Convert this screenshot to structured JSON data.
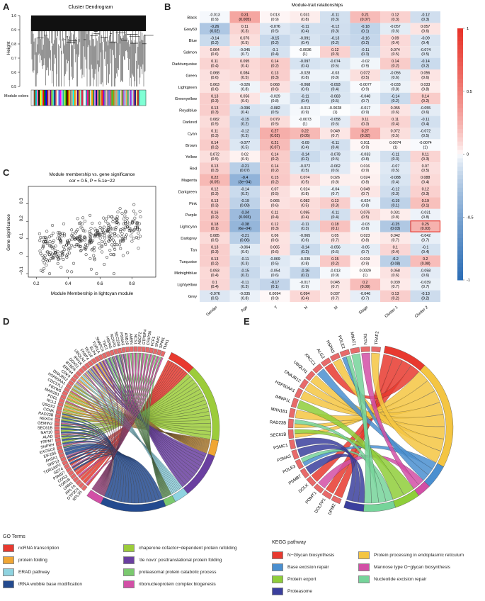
{
  "panels": {
    "A": "A",
    "B": "B",
    "C": "C",
    "D": "D",
    "E": "E"
  },
  "panelA": {
    "title": "Cluster Dendrogram",
    "ylabel": "Height",
    "yticks": [
      "1.0",
      "0.9",
      "0.8",
      "0.7",
      "0.6",
      "0.5"
    ],
    "module_label": "Module colors",
    "module_colors": [
      "#ffffff",
      "#c0c0c0",
      "#8b4513",
      "#00ced1",
      "#ff69b4",
      "#000000",
      "#ffff00",
      "#90ee90",
      "#ff0000",
      "#008000",
      "#0000ff",
      "#a52a2a",
      "#ffc0cb",
      "#800080",
      "#9acd32",
      "#40e0d0",
      "#191970",
      "#fa8072",
      "#e0ffff",
      "#4169e1",
      "#ff00ff",
      "#add8e6",
      "#20b2aa",
      "#adff2f",
      "#006400",
      "#8b0000",
      "#ffd700",
      "#808080",
      "#d2b48c",
      "#00ffff",
      "#ff8c00",
      "#f5deb3",
      "#4b0082",
      "#daa520",
      "#7fffd4",
      "#dc143c",
      "#c0c0c0",
      "#ffffff",
      "#4682b4",
      "#ff1493",
      "#556b2f",
      "#b0e0e6",
      "#ffa500",
      "#2e8b57",
      "#ee82ee",
      "#00008b",
      "#f08080",
      "#228b22",
      "#bdb76b",
      "#ff4500",
      "#9400d3",
      "#5f9ea0",
      "#ffb6c1",
      "#708090",
      "#7b68ee",
      "#cd5c5c",
      "#32cd32",
      "#b8860b",
      "#8fbc8f",
      "#e9967a",
      "#66cdaa",
      "#1e90ff",
      "#ffe4b5",
      "#6b8e23",
      "#ba55d3",
      "#87ceeb",
      "#f4a460",
      "#3cb371",
      "#d8bfd8",
      "#8a2be2",
      "#afeeee",
      "#db7093",
      "#000080",
      "#f0e68c",
      "#b22222",
      "#48d1cc",
      "#7fffd4",
      "#7fffd4",
      "#7fffd4",
      "#7fffd4"
    ]
  },
  "panelB": {
    "title": "Module-trait relationships",
    "modules": [
      "Black",
      "Grey60",
      "Blue",
      "Salmon",
      "Darkturquoise",
      "Green",
      "Lightgreen",
      "Greenyellow",
      "Royalblue",
      "Darkred",
      "Cyan",
      "Brown",
      "Yellow",
      "Red",
      "Magenta",
      "Darkgreen",
      "Pink",
      "Purple",
      "Lightcyan",
      "Darkgrey",
      "Tan",
      "Turquoise",
      "Midnightblue",
      "Lightyellow",
      "Grey"
    ],
    "traits": [
      "Gender",
      "Age",
      "T",
      "N",
      "M",
      "Stage",
      "Cluster 1",
      "Cluster 2"
    ],
    "cor": [
      [
        -0.013,
        0.31,
        0.013,
        0.031,
        -0.11,
        0.21,
        0.12,
        -0.12
      ],
      [
        -0.26,
        0.11,
        -0.076,
        -0.11,
        -0.12,
        -0.18,
        -0.057,
        0.057
      ],
      [
        -0.14,
        0.076,
        -0.15,
        -0.091,
        -0.13,
        -0.16,
        0.09,
        -0.09
      ],
      [
        0.064,
        -0.045,
        -0.1,
        -0.0036,
        0.12,
        -0.11,
        0.074,
        -0.074
      ],
      [
        0.11,
        0.095,
        0.14,
        -0.097,
        -0.074,
        -0.02,
        0.14,
        -0.14
      ],
      [
        0.068,
        0.084,
        0.13,
        -0.028,
        -0.03,
        0.072,
        -0.056,
        0.056
      ],
      [
        0.063,
        -0.026,
        0.068,
        -0.068,
        -0.093,
        -0.0077,
        -0.033,
        0.033
      ],
      [
        0.13,
        0.056,
        -0.029,
        -0.11,
        -0.083,
        -0.048,
        -0.14,
        0.14
      ],
      [
        0.13,
        -0.096,
        -0.082,
        -0.013,
        -0.0028,
        -0.017,
        0.055,
        -0.055
      ],
      [
        0.082,
        -0.15,
        0.079,
        -0.0073,
        -0.058,
        0.11,
        0.11,
        -0.11
      ],
      [
        0.11,
        -0.12,
        0.27,
        0.22,
        0.049,
        0.27,
        0.072,
        -0.072
      ],
      [
        0.14,
        -0.077,
        0.21,
        -0.09,
        -0.11,
        0.011,
        0.0074,
        -0.0074
      ],
      [
        0.072,
        0.02,
        0.14,
        -0.14,
        -0.078,
        -0.033,
        -0.11,
        0.11
      ],
      [
        0.13,
        -0.21,
        0.14,
        -0.072,
        -0.062,
        0.016,
        -0.07,
        0.07
      ],
      [
        0.22,
        -0.4,
        0.15,
        0.074,
        0.026,
        0.024,
        -0.088,
        0.088
      ],
      [
        0.12,
        -0.14,
        0.07,
        0.024,
        -0.04,
        0.049,
        -0.12,
        0.12
      ],
      [
        0.13,
        -0.19,
        0.065,
        0.082,
        0.13,
        -0.024,
        -0.19,
        0.19
      ],
      [
        0.16,
        -0.34,
        0.11,
        0.095,
        -0.11,
        0.076,
        0.031,
        -0.031
      ],
      [
        0.18,
        -0.38,
        0.12,
        -0.11,
        0.18,
        -0.03,
        -0.25,
        0.25
      ],
      [
        0.085,
        -0.21,
        0.06,
        -0.065,
        0.05,
        0.023,
        0.042,
        -0.042
      ],
      [
        0.13,
        -0.064,
        0.065,
        -0.14,
        -0.056,
        -0.05,
        0.1,
        -0.1
      ],
      [
        0.13,
        -0.11,
        -0.069,
        -0.035,
        0.15,
        0.019,
        -0.2,
        0.2
      ],
      [
        0.093,
        -0.15,
        -0.054,
        -0.16,
        -0.013,
        0.0029,
        0.058,
        -0.058
      ],
      [
        0.1,
        -0.11,
        -0.17,
        -0.017,
        0.045,
        0.2,
        0.039,
        -0.039
      ],
      [
        -0.076,
        -0.035,
        0.0094,
        0.094,
        0.037,
        -0.046,
        0.13,
        -0.13
      ]
    ],
    "pval": [
      [
        "(0.9)",
        "(0.005)",
        "(0.9)",
        "(0.8)",
        "(0.3)",
        "(0.07)",
        "(0.3)",
        "(0.3)"
      ],
      [
        "(0.02)",
        "(0.3)",
        "(0.5)",
        "(0.4)",
        "(0.3)",
        "(0.1)",
        "(0.6)",
        "(0.6)"
      ],
      [
        "(0.2)",
        "(0.5)",
        "(0.2)",
        "(0.4)",
        "(0.2)",
        "(0.2)",
        "(0.4)",
        "(0.4)"
      ],
      [
        "(0.6)",
        "(0.7)",
        "(0.4)",
        "(1)",
        "(0.3)",
        "(0.3)",
        "(0.5)",
        "(0.5)"
      ],
      [
        "(0.4)",
        "(0.4)",
        "(0.2)",
        "(0.4)",
        "(0.5)",
        "(0.9)",
        "(0.2)",
        "(0.2)"
      ],
      [
        "(0.6)",
        "(0.5)",
        "(0.3)",
        "(0.8)",
        "(0.8)",
        "(0.5)",
        "(0.6)",
        "(0.6)"
      ],
      [
        "(0.6)",
        "(0.8)",
        "(0.6)",
        "(0.6)",
        "(0.4)",
        "(0.9)",
        "(0.8)",
        "(0.8)"
      ],
      [
        "(0.3)",
        "(0.6)",
        "(0.8)",
        "(0.4)",
        "(0.5)",
        "(0.7)",
        "(0.2)",
        "(0.2)"
      ],
      [
        "(0.3)",
        "(0.4)",
        "(0.5)",
        "(0.9)",
        "(1)",
        "(0.9)",
        "(0.6)",
        "(0.6)"
      ],
      [
        "(0.5)",
        "(0.2)",
        "(0.5)",
        "(1)",
        "(0.6)",
        "(0.3)",
        "(0.4)",
        "(0.4)"
      ],
      [
        "(0.3)",
        "(0.3)",
        "(0.02)",
        "(0.05)",
        "(0.7)",
        "(0.02)",
        "(0.5)",
        "(0.5)"
      ],
      [
        "(0.2)",
        "(0.5)",
        "(0.07)",
        "(0.4)",
        "(0.4)",
        "(0.9)",
        "(1)",
        "(1)"
      ],
      [
        "(0.5)",
        "(0.9)",
        "(0.2)",
        "(0.2)",
        "(0.5)",
        "(0.8)",
        "(0.3)",
        "(0.3)"
      ],
      [
        "(0.3)",
        "(0.07)",
        "(0.2)",
        "(0.5)",
        "(0.6)",
        "(0.9)",
        "(0.5)",
        "(0.5)"
      ],
      [
        "(0.05)",
        "(3e−04)",
        "(0.2)",
        "(0.5)",
        "(0.8)",
        "(0.8)",
        "(0.4)",
        "(0.4)"
      ],
      [
        "(0.3)",
        "(0.2)",
        "(0.5)",
        "(0.8)",
        "(0.7)",
        "(0.7)",
        "(0.3)",
        "(0.3)"
      ],
      [
        "(0.3)",
        "(0.09)",
        "(0.6)",
        "(0.5)",
        "(0.3)",
        "(0.8)",
        "(0.1)",
        "(0.1)"
      ],
      [
        "(0.2)",
        "(0.003)",
        "(0.4)",
        "(0.4)",
        "(0.4)",
        "(0.5)",
        "(0.8)",
        "(0.8)"
      ],
      [
        "(0.1)",
        "(6e−04)",
        "(0.3)",
        "(0.3)",
        "(0.1)",
        "(0.8)",
        "(0.03)",
        "(0.03)"
      ],
      [
        "(0.5)",
        "(0.06)",
        "(0.6)",
        "(0.6)",
        "(0.7)",
        "(0.8)",
        "(0.7)",
        "(0.7)"
      ],
      [
        "(0.3)",
        "(0.6)",
        "(0.6)",
        "(0.2)",
        "(0.6)",
        "(0.7)",
        "(0.4)",
        "(0.4)"
      ],
      [
        "(0.2)",
        "(0.3)",
        "(0.5)",
        "(0.8)",
        "(0.2)",
        "(0.9)",
        "(0.08)",
        "(0.08)"
      ],
      [
        "(0.4)",
        "(0.2)",
        "(0.6)",
        "(0.2)",
        "(0.9)",
        "(1)",
        "(0.6)",
        "(0.6)"
      ],
      [
        "(0.4)",
        "(0.3)",
        "(0.1)",
        "(0.9)",
        "(0.7)",
        "(0.08)",
        "(0.7)",
        "(0.7)"
      ],
      [
        "(0.5)",
        "(0.8)",
        "(0.9)",
        "(0.4)",
        "(0.7)",
        "(0.7)",
        "(0.2)",
        "(0.2)"
      ]
    ],
    "highlight": {
      "row": 18,
      "col": 7
    },
    "scale_labels": [
      "1",
      "0.5",
      "0",
      "-0.5",
      "-1"
    ],
    "colors": {
      "pos": "#e8342a",
      "neg": "#2e6fb6",
      "mid": "#ffffff",
      "highlight": "#e8342a"
    }
  },
  "panelC": {
    "title_line1": "Module membership vs. gene significance",
    "title_line2": "cor = 0.5, P = 5.1e−22",
    "xlabel": "Module Membership in lightcyan module",
    "ylabel": "Gene significance",
    "xticks": [
      "0.2",
      "0.4",
      "0.6",
      "0.8"
    ],
    "yticks": [
      "0.3",
      "0.2",
      "0.1",
      "0",
      "−0.1"
    ],
    "chart_data": {
      "type": "scatter",
      "title": "Module membership vs. gene significance",
      "subtitle": "cor = 0.5, P = 5.1e-22",
      "xlabel": "Module Membership in lightcyan module",
      "ylabel": "Gene significance",
      "xlim": [
        0.15,
        0.95
      ],
      "ylim": [
        -0.12,
        0.4
      ],
      "n_points": 360,
      "cor": 0.5
    }
  },
  "panelD": {
    "genes": [
      "RPL35",
      "GTF3C4",
      "RPL7A",
      "URM1",
      "TOR1B",
      "COG2",
      "PSMD7",
      "GET4",
      "TOR1AIP2",
      "SRP19",
      "AHSA1",
      "EIF2B5",
      "EXOSC8",
      "SHPRH",
      "TRPM7",
      "ALAD",
      "NAT10",
      "SEC61B",
      "GEMIN2",
      "REXO4",
      "RAD23B",
      "CCNK",
      "QSOX2",
      "RCL1",
      "PDCL",
      "MAN1B1",
      "FBXW5",
      "CDC37L1",
      "HSP90AA1",
      "DNAJB12",
      "CDK9",
      "ERP44",
      "BTBD6",
      "DDX51",
      "IPP1K",
      "UBQLN1",
      "FKBP4",
      "TEX10",
      "ELP4",
      "TOR1A",
      "SNAPC4",
      "TSC1",
      "HSPA5",
      "NCAPG",
      "SEC22B",
      "PSMA3",
      "ASB10",
      "AMBN",
      "NCS1",
      "ABCF2",
      "GTPBP4",
      "CFAP36",
      "FCF1",
      "SNW1",
      "SPIN1",
      "TMX1"
    ],
    "legend_title": "GO Terms",
    "terms": [
      {
        "label": "ncRNA transcription",
        "color": "#e8392f"
      },
      {
        "label": "chaperone cofactor−dependent protein refolding",
        "color": "#9ccc3a"
      },
      {
        "label": "protein folding",
        "color": "#f0a634"
      },
      {
        "label": "'de novo' posttranslational protein folding",
        "color": "#6a3fa0"
      },
      {
        "label": "ERAD pathway",
        "color": "#8fd3e0"
      },
      {
        "label": "proteasomal protein catabolic process",
        "color": "#7bc96f"
      },
      {
        "label": "tRNA wobble base modification",
        "color": "#234a8f"
      },
      {
        "label": "ribonucleoprotein complex biogenesis",
        "color": "#d24fa6"
      }
    ]
  },
  "panelE": {
    "genes": [
      "DPM2",
      "DOLPP1",
      "POMT1",
      "DOLK",
      "PSMB7",
      "POLE3",
      "PSMA3",
      "PSMC1",
      "SEC61B",
      "RAD23B",
      "MAN1B1",
      "IMMP1L",
      "HSP90AA1",
      "DNAJB12",
      "UBQLN1",
      "XRCC1",
      "ALG2",
      "HSPA5",
      "POLE2",
      "MNAT1",
      "FKTN",
      "TRAF2"
    ],
    "legend_title": "KEGG pathway",
    "terms": [
      {
        "label": "N−Glycan biosynthesis",
        "color": "#e8392f"
      },
      {
        "label": "Protein processing in endoplasmic reticulum",
        "color": "#f4c542"
      },
      {
        "label": "Base excision repair",
        "color": "#4a8fd0"
      },
      {
        "label": "Mannose type O−glycan biosynthesis",
        "color": "#d24fa6"
      },
      {
        "label": "Protein export",
        "color": "#8fce3a"
      },
      {
        "label": "Nucleotide excision repair",
        "color": "#76d49a"
      },
      {
        "label": "Proteasome",
        "color": "#3b3f9e"
      }
    ]
  }
}
